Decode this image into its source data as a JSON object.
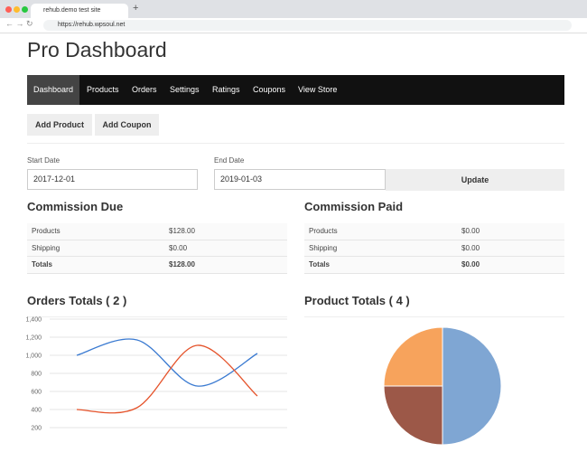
{
  "browser": {
    "tab_title": "rehub.demo test site",
    "url": "https://rehub.wpsoul.net"
  },
  "header": {
    "title": "Pro Dashboard"
  },
  "nav": {
    "items": [
      "Dashboard",
      "Products",
      "Orders",
      "Settings",
      "Ratings",
      "Coupons",
      "View Store"
    ],
    "active": 0
  },
  "actions": [
    "Add Product",
    "Add Coupon"
  ],
  "filters": {
    "start_label": "Start Date",
    "start_value": "2017-12-01",
    "end_label": "End Date",
    "end_value": "2019-01-03",
    "button": "Update"
  },
  "commission_due": {
    "title": "Commission Due",
    "rows": [
      [
        "Products",
        "$128.00"
      ],
      [
        "Shipping",
        "$0.00"
      ],
      [
        "Totals",
        "$128.00"
      ]
    ]
  },
  "commission_paid": {
    "title": "Commission Paid",
    "rows": [
      [
        "Products",
        "$0.00"
      ],
      [
        "Shipping",
        "$0.00"
      ],
      [
        "Totals",
        "$0.00"
      ]
    ]
  },
  "chart_data": [
    {
      "type": "line",
      "title": "Orders Totals ( 2 )",
      "categories": [
        null,
        null,
        null,
        null
      ],
      "series": [
        {
          "color": "#3a7ad1",
          "values": [
            1000,
            1170,
            660,
            1020
          ]
        },
        {
          "color": "#e5532b",
          "values": [
            400,
            420,
            1110,
            550
          ]
        }
      ],
      "ylim": [
        0,
        1400
      ],
      "yticks": [
        {
          "value": 200,
          "label": "200"
        },
        {
          "value": 400,
          "label": "400"
        },
        {
          "value": 600,
          "label": "600"
        },
        {
          "value": 800,
          "label": "800"
        },
        {
          "value": 1000,
          "label": "1,000"
        },
        {
          "value": 1200,
          "label": "1,200"
        },
        {
          "value": 1400,
          "label": "1,400"
        }
      ],
      "grid": true
    },
    {
      "type": "pie",
      "title": "Product Totals ( 4 )",
      "values": [
        50,
        25,
        25
      ],
      "colors": [
        "#7fa6d3",
        "#9c5848",
        "#f7a35c"
      ]
    }
  ]
}
